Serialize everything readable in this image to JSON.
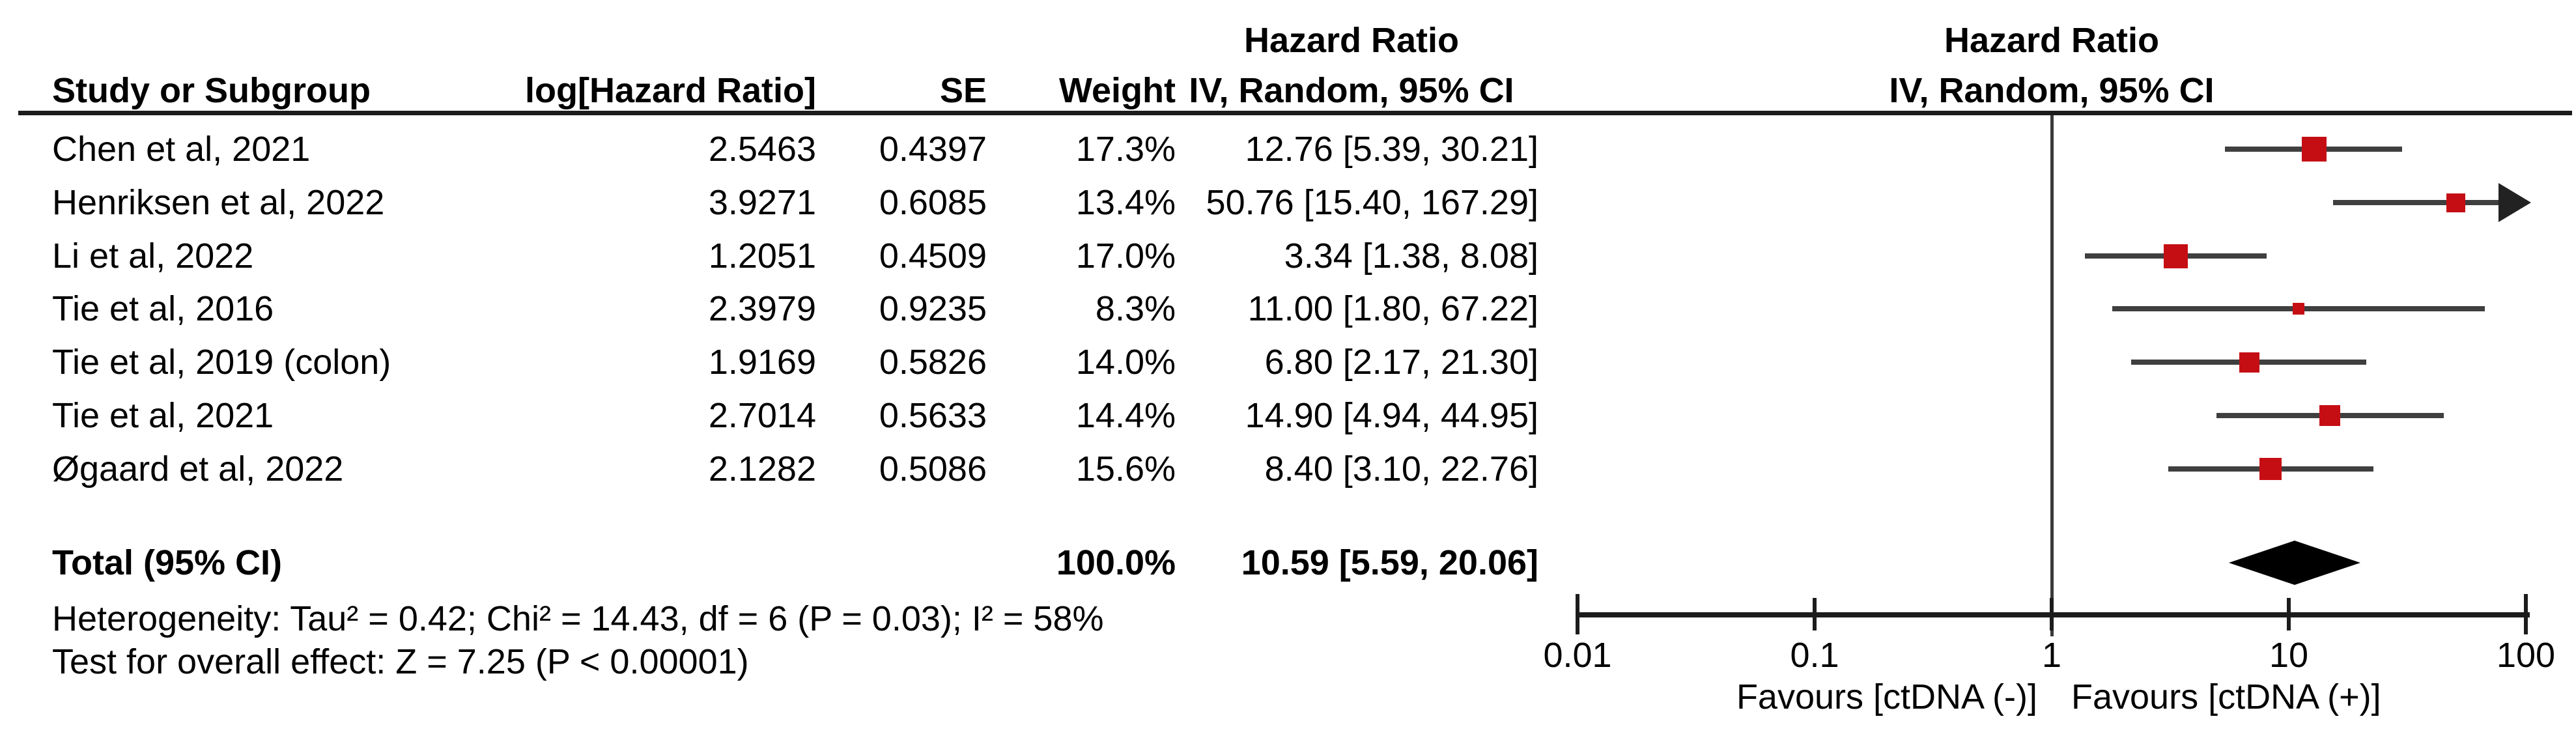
{
  "chart_data": {
    "type": "forest_plot",
    "effect_measure": "Hazard Ratio",
    "model": "IV, Random, 95% CI",
    "columns": {
      "study": "Study or Subgroup",
      "log_hr": "log[Hazard Ratio]",
      "se": "SE",
      "weight": "Weight",
      "estimate_header_line1": "Hazard Ratio",
      "estimate_header_line2": "IV, Random, 95% CI",
      "plot_header_line1": "Hazard Ratio",
      "plot_header_line2": "IV, Random, 95% CI"
    },
    "studies": [
      {
        "name": "Chen et al, 2021",
        "log_hr": "2.5463",
        "se": "0.4397",
        "weight_pct": "17.3%",
        "weight": 17.3,
        "ci_label": "12.76 [5.39, 30.21]",
        "hr": 12.76,
        "ci_low": 5.39,
        "ci_high": 30.21
      },
      {
        "name": "Henriksen et al, 2022",
        "log_hr": "3.9271",
        "se": "0.6085",
        "weight_pct": "13.4%",
        "weight": 13.4,
        "ci_label": "50.76 [15.40, 167.29]",
        "hr": 50.76,
        "ci_low": 15.4,
        "ci_high": 167.29
      },
      {
        "name": "Li et al, 2022",
        "log_hr": "1.2051",
        "se": "0.4509",
        "weight_pct": "17.0%",
        "weight": 17.0,
        "ci_label": "3.34 [1.38, 8.08]",
        "hr": 3.34,
        "ci_low": 1.38,
        "ci_high": 8.08
      },
      {
        "name": "Tie et al, 2016",
        "log_hr": "2.3979",
        "se": "0.9235",
        "weight_pct": "8.3%",
        "weight": 8.3,
        "ci_label": "11.00 [1.80, 67.22]",
        "hr": 11.0,
        "ci_low": 1.8,
        "ci_high": 67.22
      },
      {
        "name": "Tie et al, 2019 (colon)",
        "log_hr": "1.9169",
        "se": "0.5826",
        "weight_pct": "14.0%",
        "weight": 14.0,
        "ci_label": "6.80 [2.17, 21.30]",
        "hr": 6.8,
        "ci_low": 2.17,
        "ci_high": 21.3
      },
      {
        "name": "Tie et al, 2021",
        "log_hr": "2.7014",
        "se": "0.5633",
        "weight_pct": "14.4%",
        "weight": 14.4,
        "ci_label": "14.90 [4.94, 44.95]",
        "hr": 14.9,
        "ci_low": 4.94,
        "ci_high": 44.95
      },
      {
        "name": "Øgaard et al, 2022",
        "log_hr": "2.1282",
        "se": "0.5086",
        "weight_pct": "15.6%",
        "weight": 15.6,
        "ci_label": "8.40 [3.10, 22.76]",
        "hr": 8.4,
        "ci_low": 3.1,
        "ci_high": 22.76
      }
    ],
    "total": {
      "label": "Total (95% CI)",
      "weight_pct": "100.0%",
      "ci_label": "10.59 [5.59, 20.06]",
      "hr": 10.59,
      "ci_low": 5.59,
      "ci_high": 20.06
    },
    "heterogeneity": "Heterogeneity: Tau² = 0.42; Chi² = 14.43, df = 6 (P = 0.03); I² = 58%",
    "overall_effect": "Test for overall effect: Z = 7.25 (P < 0.00001)",
    "axis": {
      "scale": "log",
      "ticks": [
        0.01,
        0.1,
        1,
        10,
        100
      ],
      "tick_labels": [
        "0.01",
        "0.1",
        "1",
        "10",
        "100"
      ],
      "xmin": 0.01,
      "xmax": 100,
      "favours_left": "Favours [ctDNA (-)]",
      "favours_right": "Favours [ctDNA (+)]"
    },
    "colors": {
      "marker": "#c50e14",
      "ci_line": "#3f3f3f",
      "diamond": "#000000",
      "text": "#000000"
    }
  }
}
